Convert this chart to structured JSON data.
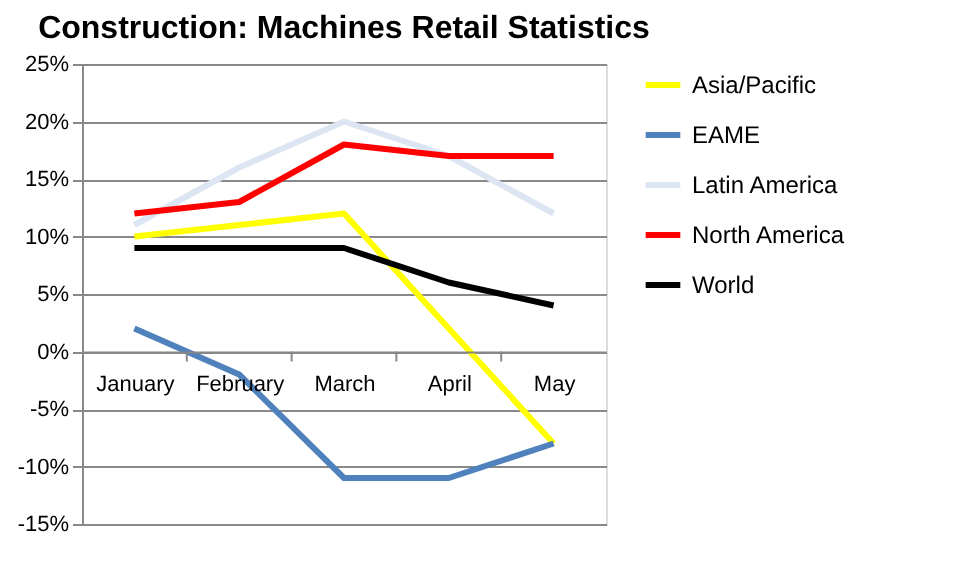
{
  "chart_data": {
    "type": "line",
    "title": "Construction: Machines Retail Statistics",
    "categories": [
      "January",
      "February",
      "March",
      "April",
      "May"
    ],
    "series": [
      {
        "name": "Asia/Pacific",
        "color": "#ffff00",
        "values": [
          10,
          11,
          12,
          2,
          -8
        ]
      },
      {
        "name": "EAME",
        "color": "#4f81bd",
        "values": [
          2,
          -2,
          -11,
          -11,
          -8
        ]
      },
      {
        "name": "Latin America",
        "color": "#dce6f2",
        "values": [
          11,
          16,
          20,
          17,
          12
        ]
      },
      {
        "name": "North America",
        "color": "#ff0000",
        "values": [
          12,
          13,
          18,
          17,
          17
        ]
      },
      {
        "name": "World",
        "color": "#000000",
        "values": [
          9,
          9,
          9,
          6,
          4
        ]
      }
    ],
    "ylim": [
      -15,
      25
    ],
    "yticks": [
      {
        "value": -15,
        "label": "-15%"
      },
      {
        "value": -10,
        "label": "-10%"
      },
      {
        "value": -5,
        "label": "-5%"
      },
      {
        "value": 0,
        "label": "0%"
      },
      {
        "value": 5,
        "label": "5%"
      },
      {
        "value": 10,
        "label": "10%"
      },
      {
        "value": 15,
        "label": "15%"
      },
      {
        "value": 20,
        "label": "20%"
      },
      {
        "value": 25,
        "label": "25%"
      }
    ],
    "grid": "y",
    "legend": "right",
    "marker": "none",
    "line_style": "solid"
  }
}
